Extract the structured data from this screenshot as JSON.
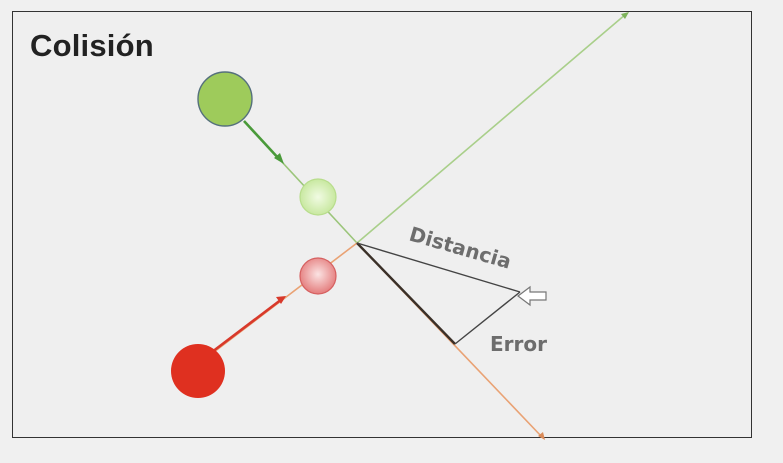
{
  "title": "Colisión",
  "labels": {
    "distance": "Distancia",
    "error": "Error"
  },
  "colors": {
    "green_ball": "#9ecb5b",
    "green_ball_ghost": "#d6efb3",
    "red_ball": "#df3020",
    "red_ball_ghost": "#eea1a1",
    "green_path": "#9bc57a",
    "green_arrow": "#5aa84a",
    "red_arrow": "#d8392b",
    "orange_path": "#e9a274",
    "dark_line": "#3a3a3a"
  },
  "icons": {
    "pointer": "hollow-left-arrow-icon"
  }
}
